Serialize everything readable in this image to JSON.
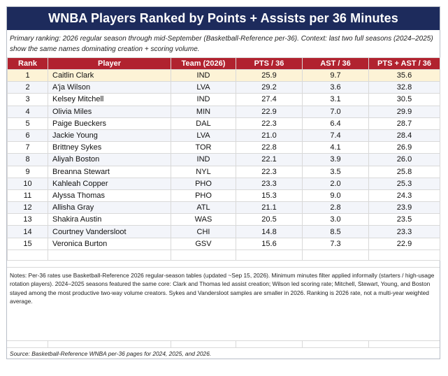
{
  "title": "WNBA Players Ranked by Points + Assists per 36 Minutes",
  "intro": "Primary ranking: 2026 regular season through mid-September (Basketball-Reference per-36). Context: last two full seasons (2024–2025) show the same names dominating creation + scoring volume.",
  "columns": [
    "Rank",
    "Player",
    "Team (2026)",
    "PTS / 36",
    "AST / 36",
    "PTS + AST / 36"
  ],
  "rows": [
    {
      "rank": "1",
      "player": "Caitlin Clark",
      "team": "IND",
      "pts": "25.9",
      "ast": "9.7",
      "total": "35.6"
    },
    {
      "rank": "2",
      "player": "A'ja Wilson",
      "team": "LVA",
      "pts": "29.2",
      "ast": "3.6",
      "total": "32.8"
    },
    {
      "rank": "3",
      "player": "Kelsey Mitchell",
      "team": "IND",
      "pts": "27.4",
      "ast": "3.1",
      "total": "30.5"
    },
    {
      "rank": "4",
      "player": "Olivia Miles",
      "team": "MIN",
      "pts": "22.9",
      "ast": "7.0",
      "total": "29.9"
    },
    {
      "rank": "5",
      "player": "Paige Bueckers",
      "team": "DAL",
      "pts": "22.3",
      "ast": "6.4",
      "total": "28.7"
    },
    {
      "rank": "6",
      "player": "Jackie Young",
      "team": "LVA",
      "pts": "21.0",
      "ast": "7.4",
      "total": "28.4"
    },
    {
      "rank": "7",
      "player": "Brittney Sykes",
      "team": "TOR",
      "pts": "22.8",
      "ast": "4.1",
      "total": "26.9"
    },
    {
      "rank": "8",
      "player": "Aliyah Boston",
      "team": "IND",
      "pts": "22.1",
      "ast": "3.9",
      "total": "26.0"
    },
    {
      "rank": "9",
      "player": "Breanna Stewart",
      "team": "NYL",
      "pts": "22.3",
      "ast": "3.5",
      "total": "25.8"
    },
    {
      "rank": "10",
      "player": "Kahleah Copper",
      "team": "PHO",
      "pts": "23.3",
      "ast": "2.0",
      "total": "25.3"
    },
    {
      "rank": "11",
      "player": "Alyssa Thomas",
      "team": "PHO",
      "pts": "15.3",
      "ast": "9.0",
      "total": "24.3"
    },
    {
      "rank": "12",
      "player": "Allisha Gray",
      "team": "ATL",
      "pts": "21.1",
      "ast": "2.8",
      "total": "23.9"
    },
    {
      "rank": "13",
      "player": "Shakira Austin",
      "team": "WAS",
      "pts": "20.5",
      "ast": "3.0",
      "total": "23.5"
    },
    {
      "rank": "14",
      "player": "Courtney Vandersloot",
      "team": "CHI",
      "pts": "14.8",
      "ast": "8.5",
      "total": "23.3"
    },
    {
      "rank": "15",
      "player": "Veronica Burton",
      "team": "GSV",
      "pts": "15.6",
      "ast": "7.3",
      "total": "22.9"
    }
  ],
  "notes": "Notes: Per-36 rates use Basketball-Reference 2026 regular-season tables (updated ~Sep 15, 2026). Minimum minutes filter applied informally (starters / high-usage rotation players). 2024–2025 seasons featured the same core: Clark and Thomas led assist creation; Wilson led scoring rate; Mitchell, Stewart, Young, and Boston stayed among the most productive two-way volume creators. Sykes and Vandersloot samples are smaller in 2026. Ranking is 2026 rate, not a multi-year weighted average.",
  "source": "Source: Basketball-Reference WNBA per-36 pages for 2024, 2025, and 2026."
}
